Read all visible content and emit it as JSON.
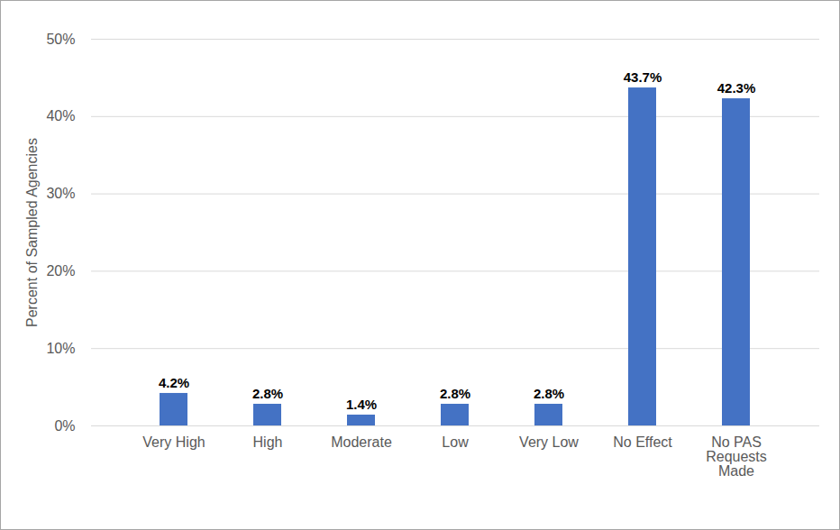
{
  "chart_data": {
    "type": "bar",
    "y_label": "Percent of Sampled Agencies",
    "categories": [
      "Very High",
      "High",
      "Moderate",
      "Low",
      "Very Low",
      "No Effect",
      "No PAS Requests Made"
    ],
    "values": [
      4.2,
      2.8,
      1.4,
      2.8,
      2.8,
      43.7,
      42.3
    ],
    "value_labels": [
      "4.2%",
      "2.8%",
      "1.4%",
      "2.8%",
      "2.8%",
      "43.7%",
      "42.3%"
    ],
    "color": "#4472c4",
    "ylim": [
      0,
      50
    ],
    "yticks": [
      {
        "value": 0,
        "label": "0%"
      },
      {
        "value": 10,
        "label": "10%"
      },
      {
        "value": 20,
        "label": "20%"
      },
      {
        "value": 30,
        "label": "30%"
      },
      {
        "value": 40,
        "label": "40%"
      },
      {
        "value": 50,
        "label": "50%"
      }
    ],
    "grid": true,
    "data_labels": true
  }
}
